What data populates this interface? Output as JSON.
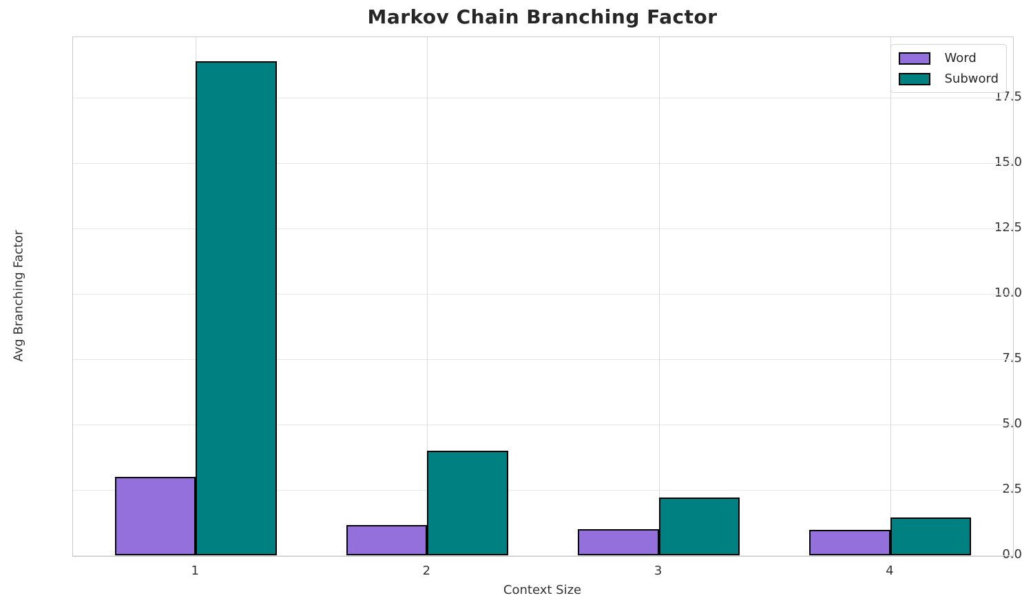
{
  "chart_data": {
    "type": "bar",
    "title": "Markov Chain Branching Factor",
    "xlabel": "Context Size",
    "ylabel": "Avg Branching Factor",
    "categories": [
      "1",
      "2",
      "3",
      "4"
    ],
    "series": [
      {
        "name": "Word",
        "color": "#9370DB",
        "values": [
          3.0,
          1.15,
          1.0,
          0.97
        ]
      },
      {
        "name": "Subword",
        "color": "#008080",
        "values": [
          18.9,
          4.0,
          2.2,
          1.45
        ]
      }
    ],
    "bar_width": 0.35,
    "bar_edge_color": "#000000",
    "xlim": [
      0.47,
      4.53
    ],
    "ylim": [
      0,
      19.82
    ],
    "yticks": [
      0.0,
      2.5,
      5.0,
      7.5,
      10.0,
      12.5,
      15.0,
      17.5
    ],
    "grid": true,
    "legend_position": "upper right",
    "colors": {
      "grid_horizontal": "#e7e7e7",
      "grid_vertical": "#d9d9d9",
      "spine": "#cccccc",
      "text": "#333333",
      "title_text": "#262626"
    }
  }
}
